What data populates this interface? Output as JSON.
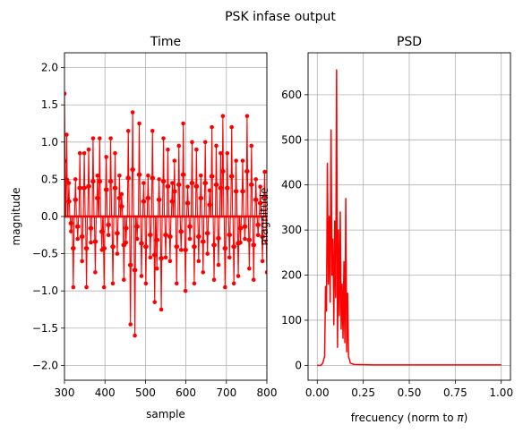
{
  "suptitle": "PSK infase output",
  "chart_data": [
    {
      "type": "line",
      "title": "Time",
      "xlabel": "sample",
      "ylabel": "magnitude",
      "xlim": [
        300,
        800
      ],
      "ylim": [
        -2.2,
        2.2
      ],
      "xticks": [
        "300",
        "400",
        "500",
        "600",
        "700",
        "800"
      ],
      "yticks": [
        "−2.0",
        "−1.5",
        "−1.0",
        "−0.5",
        "0.0",
        "0.5",
        "1.0",
        "1.5",
        "2.0"
      ],
      "grid": true,
      "color": "#ff0000",
      "marker": "dot",
      "description_values": {
        "x_start": 300,
        "x_end": 800,
        "pulse_spacing": 8,
        "pulse_peaks": [
          1.65,
          1.1,
          0.45,
          -0.2,
          -0.95,
          0.5,
          -0.3,
          0.85,
          -0.6,
          0.85,
          -0.95,
          0.9,
          -0.35,
          1.05,
          -0.75,
          0.55,
          1.05,
          -0.45,
          -0.95,
          0.8,
          -0.25,
          1.05,
          -0.9,
          0.85,
          -0.5,
          0.55,
          0.3,
          -0.85,
          -0.35,
          1.15,
          -1.45,
          1.4,
          -1.6,
          -0.3,
          1.25,
          -0.8,
          0.45,
          -0.9,
          0.55,
          -0.55,
          1.15,
          -1.15,
          -0.7,
          0.5,
          -1.25,
          1.05,
          -0.55,
          0.9,
          -0.6,
          0.45,
          0.75,
          -0.9,
          0.95,
          -0.45,
          1.25,
          -1.0,
          0.4,
          -0.3,
          1.0,
          -0.9,
          0.9,
          -0.6,
          0.55,
          -0.75,
          1.0,
          -0.5,
          0.35,
          1.2,
          -0.85,
          0.95,
          -0.65,
          0.85,
          1.35,
          -0.95,
          0.85,
          -0.55,
          1.2,
          -0.9,
          0.75,
          -0.8,
          -0.35,
          0.75,
          -0.3,
          1.35,
          -0.7,
          0.95,
          -0.85,
          0.5,
          -0.25,
          0.4,
          -0.6,
          0.6,
          -0.75
        ]
      }
    },
    {
      "type": "line",
      "title": "PSD",
      "xlabel": "frecuency (norm to π)",
      "ylabel": "magnitude",
      "xlim": [
        -0.05,
        1.05
      ],
      "ylim": [
        -33,
        693
      ],
      "xticks": [
        "0.00",
        "0.25",
        "0.50",
        "0.75",
        "1.00"
      ],
      "yticks": [
        "0",
        "100",
        "200",
        "300",
        "400",
        "500",
        "600"
      ],
      "grid": true,
      "color": "#ff0000",
      "x": [
        0.0,
        0.02,
        0.03,
        0.04,
        0.045,
        0.05,
        0.055,
        0.06,
        0.065,
        0.07,
        0.075,
        0.08,
        0.085,
        0.09,
        0.095,
        0.1,
        0.105,
        0.11,
        0.115,
        0.12,
        0.125,
        0.13,
        0.135,
        0.14,
        0.145,
        0.15,
        0.155,
        0.16,
        0.165,
        0.17,
        0.18,
        0.2,
        0.3,
        0.5,
        0.75,
        1.0
      ],
      "y": [
        0,
        0,
        5,
        20,
        175,
        120,
        448,
        180,
        330,
        140,
        522,
        200,
        280,
        90,
        320,
        150,
        655,
        40,
        300,
        110,
        340,
        80,
        180,
        60,
        230,
        50,
        370,
        30,
        160,
        20,
        5,
        2,
        1,
        1,
        1,
        1
      ]
    }
  ]
}
